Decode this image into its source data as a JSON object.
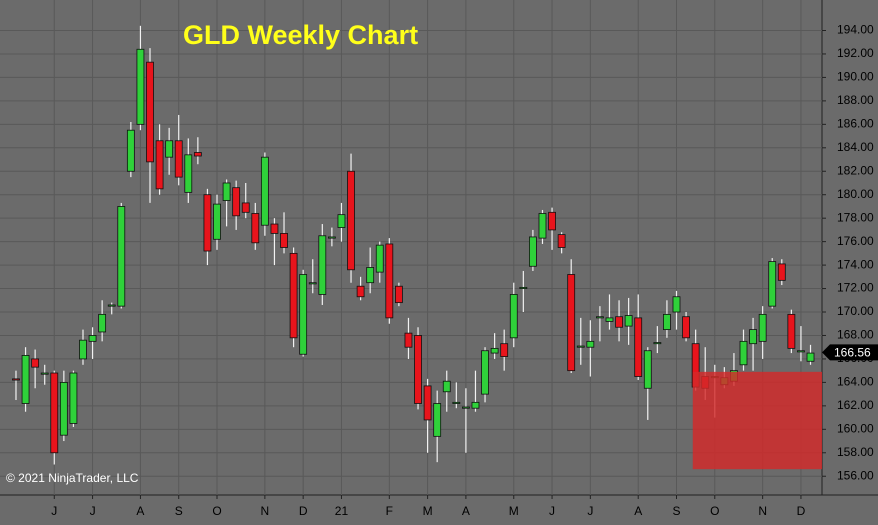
{
  "chart_data": {
    "type": "candlestick",
    "title": "GLD Weekly Chart",
    "copyright": "© 2021 NinjaTrader, LLC",
    "up_color": "#2fd13a",
    "down_color": "#e8141c",
    "grid": true,
    "ylim": [
      154.4,
      196.6
    ],
    "yticks": [
      {
        "value": 156,
        "label": "156.00"
      },
      {
        "value": 158,
        "label": "158.00"
      },
      {
        "value": 160,
        "label": "160.00"
      },
      {
        "value": 162,
        "label": "162.00"
      },
      {
        "value": 164,
        "label": "164.00"
      },
      {
        "value": 166,
        "label": "166.00"
      },
      {
        "value": 168,
        "label": "168.00"
      },
      {
        "value": 170,
        "label": "170.00"
      },
      {
        "value": 172,
        "label": "172.00"
      },
      {
        "value": 174,
        "label": "174.00"
      },
      {
        "value": 176,
        "label": "176.00"
      },
      {
        "value": 178,
        "label": "178.00"
      },
      {
        "value": 180,
        "label": "180.00"
      },
      {
        "value": 182,
        "label": "182.00"
      },
      {
        "value": 184,
        "label": "184.00"
      },
      {
        "value": 186,
        "label": "186.00"
      },
      {
        "value": 188,
        "label": "188.00"
      },
      {
        "value": 190,
        "label": "190.00"
      },
      {
        "value": 192,
        "label": "192.00"
      },
      {
        "value": 194,
        "label": "194.00"
      }
    ],
    "xlim": [
      -1.67,
      84.2
    ],
    "xticks": [
      {
        "value": 4,
        "label": "J"
      },
      {
        "value": 8,
        "label": "J"
      },
      {
        "value": 13,
        "label": "A"
      },
      {
        "value": 17,
        "label": "S"
      },
      {
        "value": 21,
        "label": "O"
      },
      {
        "value": 26,
        "label": "N"
      },
      {
        "value": 30,
        "label": "D"
      },
      {
        "value": 34,
        "label": "21"
      },
      {
        "value": 39,
        "label": "F"
      },
      {
        "value": 43,
        "label": "M"
      },
      {
        "value": 47,
        "label": "A"
      },
      {
        "value": 52,
        "label": "M"
      },
      {
        "value": 56,
        "label": "J"
      },
      {
        "value": 60,
        "label": "J"
      },
      {
        "value": 65,
        "label": "A"
      },
      {
        "value": 69,
        "label": "S"
      },
      {
        "value": 73,
        "label": "O"
      },
      {
        "value": 78,
        "label": "N"
      },
      {
        "value": 82,
        "label": "D"
      }
    ],
    "open": [
      164.3,
      162.2,
      166,
      164.7,
      164.8,
      159.5,
      160.5,
      166,
      167.5,
      168.3,
      170.5,
      170.5,
      182,
      186,
      191.3,
      184.6,
      183.2,
      184.6,
      180.2,
      183.6,
      180,
      176.2,
      179.5,
      180.6,
      179.3,
      178.4,
      177.4,
      177.5,
      176.7,
      175,
      166.4,
      172.4,
      171.5,
      176.3,
      177.2,
      182,
      172.2,
      172.5,
      173.4,
      175.8,
      172.2,
      168.2,
      168,
      163.7,
      159.4,
      163.2,
      162.2,
      161.8,
      161.8,
      163,
      166.5,
      167.3,
      167.8,
      172,
      173.9,
      176.3,
      178.5,
      176.6,
      173.2,
      167,
      167,
      169.5,
      169.2,
      169.6,
      168.8,
      169.5,
      163.5,
      167.3,
      168.5,
      170,
      169.6,
      167.3,
      164.5,
      164.4,
      163.8,
      164.1,
      165.5,
      167.3,
      167.5,
      170.5,
      174.1,
      169.8,
      166.6,
      165.8
    ],
    "high": [
      165,
      167,
      166.8,
      165.5,
      165,
      165,
      165,
      168.5,
      168.7,
      171,
      170.8,
      179.3,
      186.2,
      194.4,
      192.5,
      186,
      185.7,
      186.8,
      184.8,
      184.9,
      180.5,
      180,
      181.3,
      181.2,
      181,
      179.3,
      183.6,
      178,
      178.5,
      175.5,
      173.6,
      174.5,
      177.5,
      177.2,
      179.3,
      183.5,
      173,
      175.5,
      176,
      176.3,
      172.5,
      169.5,
      168.7,
      164.3,
      163.3,
      165,
      164,
      163.5,
      165,
      167,
      168.2,
      168.5,
      172.5,
      173.5,
      177,
      178.7,
      178.9,
      176.8,
      174.5,
      169.5,
      169.3,
      170.5,
      171.5,
      171,
      171.2,
      171.5,
      167,
      168.8,
      171,
      171.8,
      170,
      168.5,
      167,
      165.5,
      165.3,
      166.5,
      168.5,
      169.5,
      170.5,
      174.6,
      174.5,
      170.2,
      168.8,
      167.2
    ],
    "low": [
      162.5,
      161.5,
      163.5,
      163.8,
      157,
      159,
      160.2,
      165.5,
      166,
      167.5,
      169.8,
      170.3,
      181.5,
      185.5,
      179.3,
      180,
      181.7,
      180.8,
      179.3,
      182.6,
      174,
      175.3,
      177.3,
      177,
      178,
      175.3,
      176.5,
      174,
      175,
      167,
      166.2,
      171.6,
      170.6,
      175.6,
      176,
      172.5,
      171,
      171.6,
      172.5,
      169,
      170.5,
      166,
      161.7,
      158,
      157.2,
      161.5,
      161.8,
      158,
      161.5,
      162.3,
      166,
      165,
      167,
      170,
      173.5,
      175.8,
      175.3,
      175,
      164.8,
      165.5,
      164.5,
      167.5,
      168.5,
      167.5,
      167.2,
      164.2,
      160.8,
      166.5,
      167.8,
      168.5,
      167.5,
      163.3,
      162.5,
      161,
      163.5,
      163.7,
      165,
      165,
      166,
      170.3,
      172.3,
      166.5,
      165.8,
      165.5
    ],
    "close": [
      164.2,
      166.3,
      165.3,
      164.8,
      158,
      164,
      164.8,
      167.6,
      168,
      169.8,
      170.6,
      179,
      185.5,
      192.4,
      182.8,
      180.5,
      184.6,
      181.5,
      183.4,
      183.3,
      175.2,
      179.2,
      181,
      178.2,
      178.5,
      175.9,
      183.2,
      176.7,
      175.5,
      167.8,
      173.2,
      172.5,
      176.5,
      176.4,
      178.3,
      173.6,
      171.3,
      173.8,
      175.7,
      169.5,
      170.8,
      167,
      162.2,
      160.8,
      162.2,
      164.1,
      162.3,
      161.9,
      162.3,
      166.7,
      166.9,
      166.2,
      171.5,
      172.1,
      176.4,
      178.4,
      177,
      175.5,
      165,
      167.1,
      167.5,
      169.6,
      169.5,
      168.7,
      169.7,
      164.5,
      166.7,
      167.4,
      169.8,
      171.3,
      167.8,
      163.6,
      163.5,
      164.5,
      164.4,
      165,
      167.5,
      168.5,
      169.8,
      174.3,
      172.7,
      166.9,
      166.7,
      166.5
    ],
    "zone": {
      "low": 156.6,
      "high": 164.9,
      "start": 70.7,
      "color": "#d42a2a"
    },
    "last_price": {
      "value": 166.56,
      "label": "166.56"
    }
  }
}
